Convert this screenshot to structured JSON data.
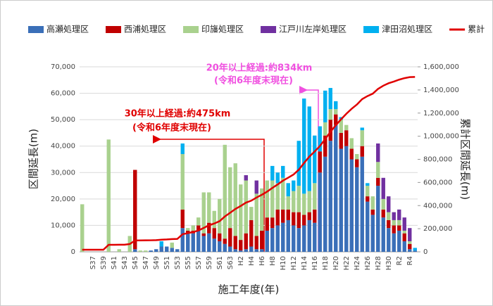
{
  "chart_data": {
    "type": "bar",
    "stacked": true,
    "ylabel": "区間延長(m)",
    "y2label": "累計区間延長(m)",
    "xlabel": "施工年度(年)",
    "annotations": [
      "20年以上経過:約834km",
      "(令和6年度末現在)",
      "30年以上経過:約475km",
      "(令和6年度末現在)"
    ],
    "categories": [
      null,
      null,
      "S37",
      null,
      "S39",
      null,
      "S41",
      null,
      "S43",
      null,
      "S45",
      null,
      "S47",
      null,
      "S49",
      null,
      "S51",
      null,
      "S53",
      null,
      "S55",
      null,
      "S57",
      null,
      "S59",
      null,
      "S61",
      null,
      "S63",
      null,
      "H2",
      null,
      "H4",
      null,
      "H6",
      null,
      "H8",
      null,
      "H10",
      null,
      "H12",
      null,
      "H14",
      null,
      "H16",
      null,
      "H18",
      null,
      "H20",
      null,
      "H22",
      null,
      "H24",
      null,
      "H26",
      null,
      "H28",
      null,
      "H30",
      null,
      "R2",
      null,
      "R4",
      null
    ],
    "ylim": [
      0,
      70000
    ],
    "yticks": [
      0,
      {
        "value": 10000,
        "label": "10,000"
      },
      {
        "value": 20000,
        "label": "20,000"
      },
      {
        "value": 30000,
        "label": "30,000"
      },
      {
        "value": 40000,
        "label": "40,000"
      },
      {
        "value": 50000,
        "label": "50,000"
      },
      {
        "value": 60000,
        "label": "60,000"
      },
      {
        "value": 70000,
        "label": "70,000"
      }
    ],
    "y2lim": [
      0,
      1600000
    ],
    "y2ticks": [
      0,
      {
        "value": 200000,
        "label": "200,000"
      },
      {
        "value": 400000,
        "label": "400,000"
      },
      {
        "value": 600000,
        "label": "600,000"
      },
      {
        "value": 800000,
        "label": "800,000"
      },
      {
        "value": 1000000,
        "label": "1,000,000"
      },
      {
        "value": 1200000,
        "label": "1,200,000"
      },
      {
        "value": 1400000,
        "label": "1,400,000"
      },
      {
        "value": 1600000,
        "label": "1,600,000"
      }
    ],
    "grid": true,
    "series": [
      {
        "name": "高瀬処理区",
        "color": "#3a6fb8",
        "values": [
          0,
          0,
          0,
          0,
          0,
          0,
          0,
          0,
          0,
          0,
          1000,
          0,
          0,
          500,
          1000,
          2000,
          2000,
          1500,
          1000,
          9000,
          7000,
          7000,
          8000,
          6000,
          7000,
          5000,
          4000,
          3000,
          2000,
          1000,
          500,
          1000,
          2000,
          1000,
          1000,
          8000,
          9000,
          10000,
          11000,
          12000,
          10000,
          9000,
          10000,
          12000,
          11000,
          30000,
          36000,
          42000,
          48000,
          39000,
          40000,
          35000,
          32000,
          36000,
          19000,
          14000,
          25000,
          13000,
          9000,
          7000,
          8000,
          4000,
          1000,
          500
        ]
      },
      {
        "name": "西浦処理区",
        "color": "#c00000",
        "values": [
          0,
          0,
          0,
          0,
          0,
          0,
          0,
          0,
          0,
          0,
          30000,
          0,
          0,
          0,
          0,
          0,
          0,
          0,
          0,
          7000,
          1000,
          1000,
          2000,
          1000,
          4000,
          4000,
          3000,
          2000,
          7000,
          5000,
          4000,
          6000,
          10000,
          5000,
          7000,
          5000,
          4000,
          6000,
          5000,
          4000,
          5000,
          6000,
          4000,
          3000,
          5000,
          8000,
          8000,
          8000,
          4000,
          6000,
          6000,
          4000,
          3000,
          4000,
          2000,
          2000,
          3000,
          3000,
          3000,
          3000,
          2000,
          3000,
          2000,
          0
        ]
      },
      {
        "name": "印旛処理区",
        "color": "#a9d18e",
        "values": [
          18000,
          0,
          0,
          0,
          0,
          42500,
          0,
          1000,
          0,
          6000,
          0,
          500,
          500,
          0,
          0,
          0,
          0,
          2000,
          0,
          21000,
          1000,
          2000,
          3000,
          15500,
          11500,
          6500,
          13000,
          35500,
          23000,
          27500,
          21000,
          20000,
          5000,
          16000,
          16000,
          14000,
          14000,
          10000,
          12000,
          5000,
          8000,
          10000,
          8000,
          8000,
          10000,
          0,
          5000,
          4000,
          2000,
          5000,
          2000,
          4000,
          2000,
          6000,
          4000,
          5000,
          6000,
          4000,
          3000,
          2000,
          2000,
          1000,
          1000,
          0
        ]
      },
      {
        "name": "江戸川左岸処理区",
        "color": "#7030a0",
        "values": [
          0,
          0,
          0,
          0,
          0,
          0,
          0,
          0,
          0,
          0,
          0,
          0,
          0,
          0,
          0,
          0,
          0,
          0,
          0,
          0,
          0,
          0,
          0,
          0,
          0,
          0,
          0,
          0,
          0,
          0,
          0,
          2000,
          0,
          5000,
          0,
          0,
          0,
          0,
          0,
          0,
          0,
          0,
          0,
          0,
          0,
          0,
          0,
          0,
          0,
          0,
          0,
          0,
          0,
          0,
          0,
          0,
          7000,
          8000,
          6000,
          3000,
          4000,
          5000,
          5000,
          0
        ]
      },
      {
        "name": "津田沼処理区",
        "color": "#00b0f0",
        "values": [
          0,
          0,
          0,
          0,
          0,
          0,
          0,
          0,
          0,
          0,
          0,
          0,
          0,
          0,
          0,
          2000,
          0,
          0,
          0,
          4000,
          0,
          0,
          0,
          0,
          0,
          0,
          0,
          0,
          0,
          0,
          0,
          0,
          0,
          0,
          0,
          0,
          5500,
          4000,
          4500,
          5000,
          4000,
          17000,
          36000,
          32000,
          18000,
          9500,
          12000,
          8000,
          3000,
          1000,
          0,
          0,
          0,
          1000,
          1000,
          0,
          0,
          0,
          0,
          0,
          0,
          0,
          0,
          1000
        ]
      },
      {
        "name": "累計",
        "color": "#e00000",
        "type": "line",
        "axis": "y2",
        "values": [
          18000,
          18000,
          18000,
          18000,
          18000,
          60500,
          60500,
          61500,
          61500,
          67500,
          98500,
          99000,
          99500,
          100000,
          101000,
          105000,
          107000,
          110500,
          111500,
          152500,
          161500,
          171500,
          184500,
          207000,
          229500,
          245000,
          265000,
          305500,
          337500,
          371000,
          396500,
          425500,
          442500,
          469500,
          493500,
          520500,
          553000,
          583000,
          615500,
          641500,
          668500,
          710500,
          768500,
          823500,
          867500,
          915000,
          976000,
          1038000,
          1095000,
          1146000,
          1194000,
          1237000,
          1274000,
          1321000,
          1347000,
          1368000,
          1409000,
          1437000,
          1458000,
          1473000,
          1489000,
          1502000,
          1511000,
          1512500
        ]
      }
    ]
  }
}
